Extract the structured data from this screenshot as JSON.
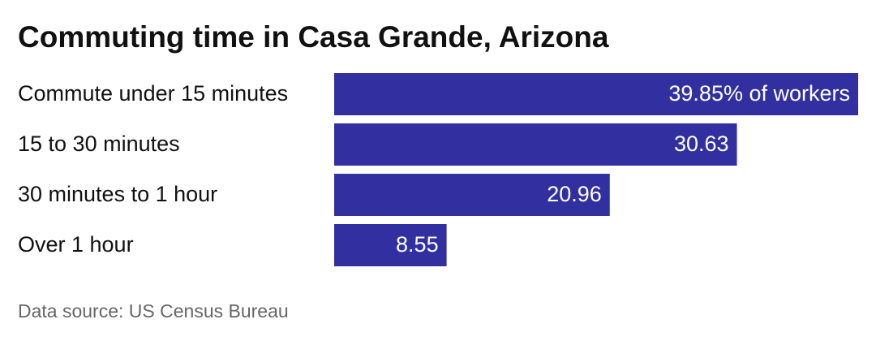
{
  "chart_data": {
    "type": "bar",
    "orientation": "horizontal",
    "title": "Commuting time in Casa Grande, Arizona",
    "categories": [
      "Commute under 15 minutes",
      "15 to 30 minutes",
      "30 minutes to 1 hour",
      "Over 1 hour"
    ],
    "values": [
      39.85,
      30.63,
      20.96,
      8.55
    ],
    "value_labels": [
      "39.85% of workers",
      "30.63",
      "20.96",
      "8.55"
    ],
    "color": "#3230a0",
    "source": "Data source: US Census Bureau"
  }
}
